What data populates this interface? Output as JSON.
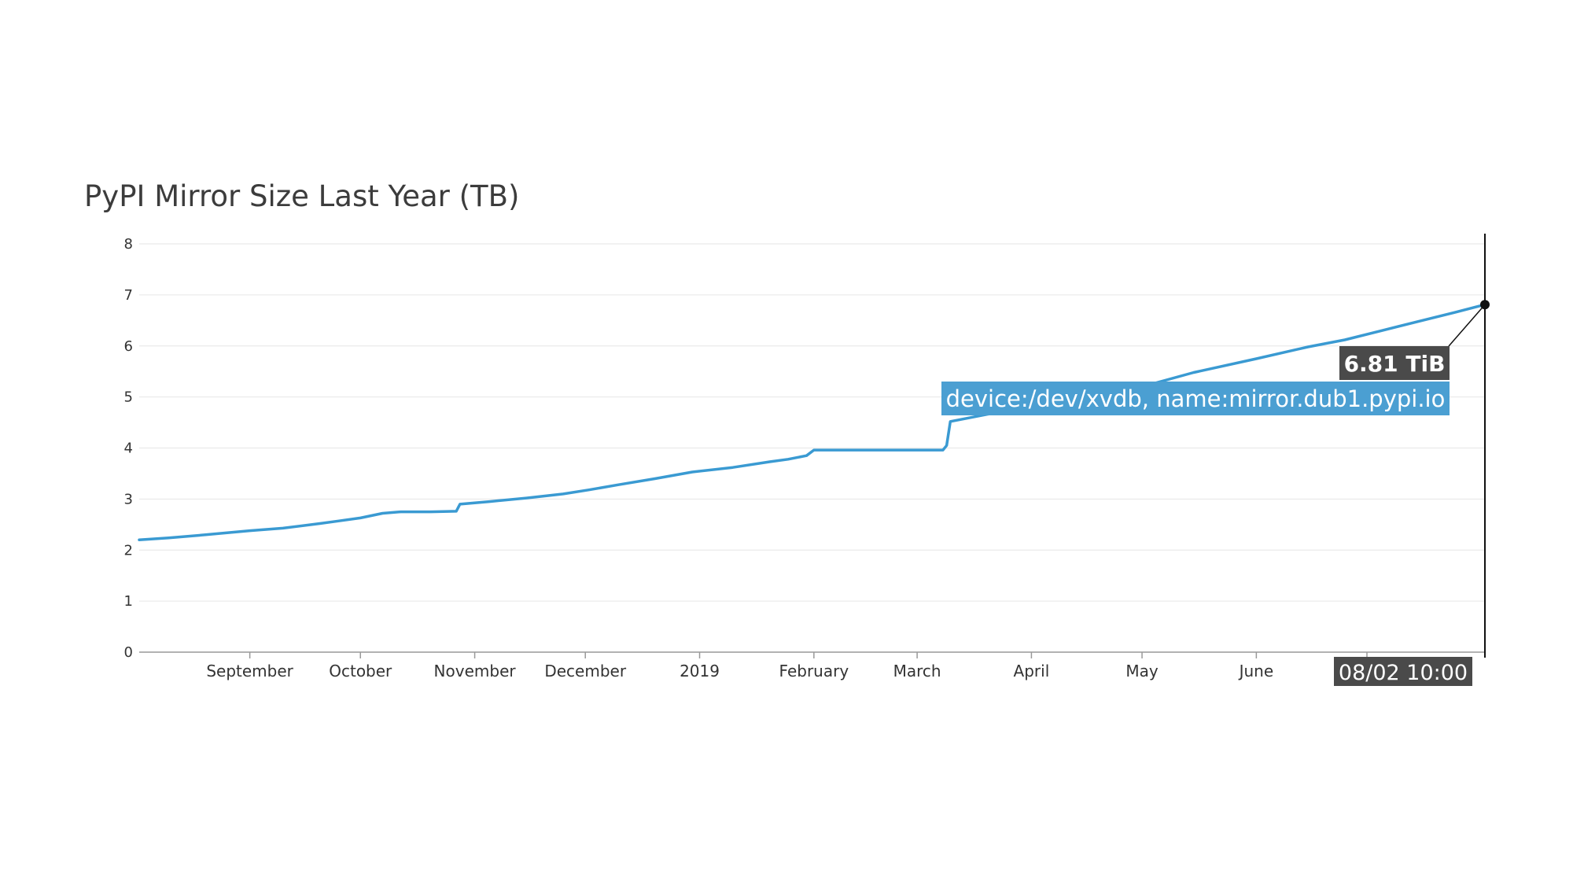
{
  "chart_data": {
    "type": "line",
    "title": "PyPI Mirror Size Last Year (TB)",
    "xlabel": "",
    "ylabel": "",
    "ylim": [
      0,
      8
    ],
    "yticks": [
      "0",
      "1",
      "2",
      "3",
      "4",
      "5",
      "6",
      "7",
      "8"
    ],
    "xticks": [
      {
        "date": "2018-09-01",
        "label": "September"
      },
      {
        "date": "2018-10-01",
        "label": "October"
      },
      {
        "date": "2018-11-01",
        "label": "November"
      },
      {
        "date": "2018-12-01",
        "label": "December"
      },
      {
        "date": "2019-01-01",
        "label": "2019"
      },
      {
        "date": "2019-02-01",
        "label": "February"
      },
      {
        "date": "2019-03-01",
        "label": "March"
      },
      {
        "date": "2019-04-01",
        "label": "April"
      },
      {
        "date": "2019-05-01",
        "label": "May"
      },
      {
        "date": "2019-06-01",
        "label": "June"
      },
      {
        "date": "2019-07-01",
        "label": ""
      }
    ],
    "xlim": [
      "2018-08-02",
      "2019-08-02"
    ],
    "grid": true,
    "legend": "none",
    "series": [
      {
        "name": "device:/dev/xvdb, name:mirror.dub1.pypi.io",
        "color": "#3a9ad2",
        "points": [
          [
            "2018-08-02",
            2.2
          ],
          [
            "2018-08-10",
            2.24
          ],
          [
            "2018-08-20",
            2.3
          ],
          [
            "2018-09-01",
            2.38
          ],
          [
            "2018-09-10",
            2.43
          ],
          [
            "2018-09-20",
            2.52
          ],
          [
            "2018-09-25",
            2.57
          ],
          [
            "2018-10-01",
            2.63
          ],
          [
            "2018-10-07",
            2.72
          ],
          [
            "2018-10-12",
            2.75
          ],
          [
            "2018-10-20",
            2.75
          ],
          [
            "2018-10-27",
            2.76
          ],
          [
            "2018-10-28",
            2.9
          ],
          [
            "2018-11-05",
            2.95
          ],
          [
            "2018-11-15",
            3.02
          ],
          [
            "2018-11-25",
            3.1
          ],
          [
            "2018-12-02",
            3.18
          ],
          [
            "2018-12-10",
            3.28
          ],
          [
            "2018-12-20",
            3.4
          ],
          [
            "2018-12-30",
            3.53
          ],
          [
            "2019-01-10",
            3.62
          ],
          [
            "2019-01-20",
            3.73
          ],
          [
            "2019-01-25",
            3.78
          ],
          [
            "2019-01-30",
            3.85
          ],
          [
            "2019-02-01",
            3.96
          ],
          [
            "2019-02-15",
            3.96
          ],
          [
            "2019-03-01",
            3.96
          ],
          [
            "2019-03-08",
            3.96
          ],
          [
            "2019-03-09",
            4.05
          ],
          [
            "2019-03-10",
            4.52
          ],
          [
            "2019-03-20",
            4.66
          ],
          [
            "2019-04-01",
            4.8
          ],
          [
            "2019-04-15",
            5.0
          ],
          [
            "2019-05-01",
            5.2
          ],
          [
            "2019-05-15",
            5.48
          ],
          [
            "2019-06-01",
            5.75
          ],
          [
            "2019-06-15",
            5.98
          ],
          [
            "2019-06-25",
            6.12
          ],
          [
            "2019-07-05",
            6.3
          ],
          [
            "2019-07-15",
            6.48
          ],
          [
            "2019-07-25",
            6.66
          ],
          [
            "2019-08-02",
            6.81
          ]
        ]
      }
    ],
    "annotations": {
      "value_label": "6.81 TiB",
      "series_label": "device:/dev/xvdb, name:mirror.dub1.pypi.io",
      "time_label": "08/02 10:00"
    }
  },
  "colors": {
    "line": "#3a9ad2",
    "grid": "#e6e6e6",
    "axis": "#999999",
    "tooltip_dark": "#4a4a4a",
    "tooltip_blue": "#4b9fd2"
  }
}
